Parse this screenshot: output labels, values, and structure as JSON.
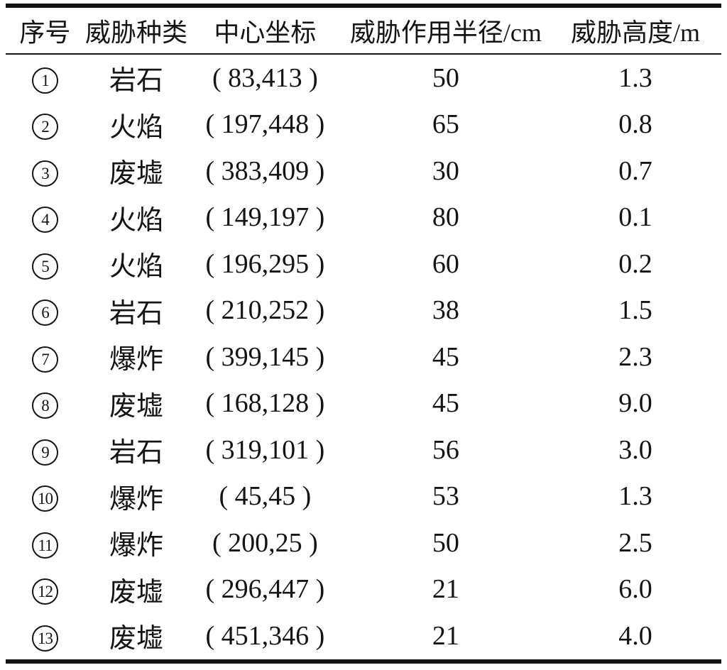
{
  "table": {
    "title": "threat-parameters-table",
    "columns": [
      {
        "key": "no",
        "label": "序号"
      },
      {
        "key": "type",
        "label": "威胁种类"
      },
      {
        "key": "coord",
        "label": "中心坐标"
      },
      {
        "key": "radius",
        "label": "威胁作用半径/cm"
      },
      {
        "key": "height",
        "label": "威胁高度/m"
      }
    ],
    "rows": [
      {
        "no": "1",
        "circled": "①",
        "type": "岩石",
        "coord": "( 83,413 )",
        "radius": "50",
        "height": "1.3"
      },
      {
        "no": "2",
        "circled": "②",
        "type": "火焰",
        "coord": "( 197,448 )",
        "radius": "65",
        "height": "0.8"
      },
      {
        "no": "3",
        "circled": "③",
        "type": "废墟",
        "coord": "( 383,409 )",
        "radius": "30",
        "height": "0.7"
      },
      {
        "no": "4",
        "circled": "④",
        "type": "火焰",
        "coord": "( 149,197 )",
        "radius": "80",
        "height": "0.1"
      },
      {
        "no": "5",
        "circled": "⑤",
        "type": "火焰",
        "coord": "( 196,295 )",
        "radius": "60",
        "height": "0.2"
      },
      {
        "no": "6",
        "circled": "⑥",
        "type": "岩石",
        "coord": "( 210,252 )",
        "radius": "38",
        "height": "1.5"
      },
      {
        "no": "7",
        "circled": "⑦",
        "type": "爆炸",
        "coord": "( 399,145 )",
        "radius": "45",
        "height": "2.3"
      },
      {
        "no": "8",
        "circled": "⑧",
        "type": "废墟",
        "coord": "( 168,128 )",
        "radius": "45",
        "height": "9.0"
      },
      {
        "no": "9",
        "circled": "⑨",
        "type": "岩石",
        "coord": "( 319,101 )",
        "radius": "56",
        "height": "3.0"
      },
      {
        "no": "10",
        "circled": "⑩",
        "type": "爆炸",
        "coord": "( 45,45 )",
        "radius": "53",
        "height": "1.3"
      },
      {
        "no": "11",
        "circled": "⑪",
        "type": "爆炸",
        "coord": "( 200,25 )",
        "radius": "50",
        "height": "2.5"
      },
      {
        "no": "12",
        "circled": "⑫",
        "type": "废墟",
        "coord": "( 296,447 )",
        "radius": "21",
        "height": "6.0"
      },
      {
        "no": "13",
        "circled": "⑬",
        "type": "废墟",
        "coord": "( 451,346 )",
        "radius": "21",
        "height": "4.0"
      }
    ],
    "colors": {
      "text": "#141414",
      "background": "#ffffff",
      "rule": "#141414"
    }
  }
}
